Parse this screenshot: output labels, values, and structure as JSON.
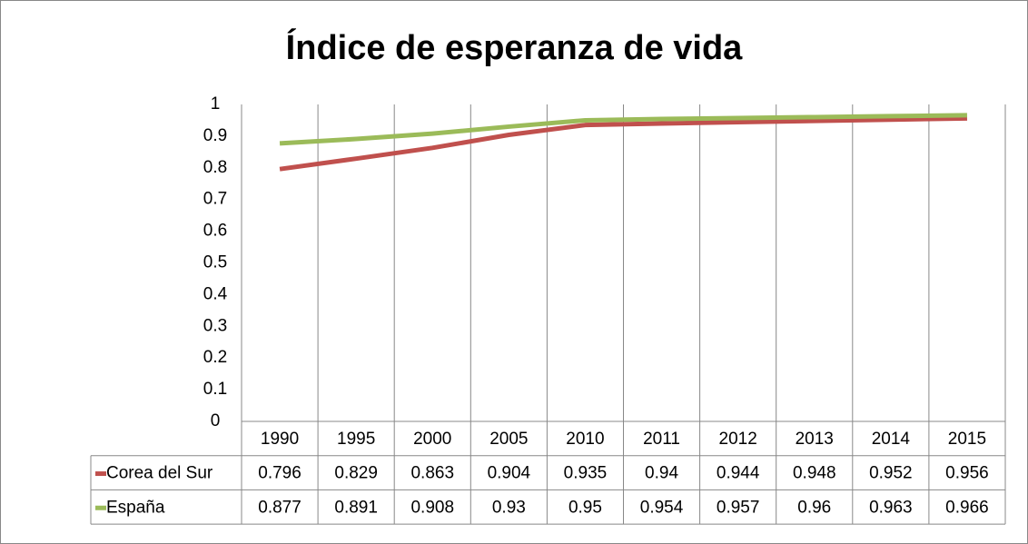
{
  "chart_data": {
    "type": "line",
    "title": "Índice de esperanza de vida",
    "categories": [
      "1990",
      "1995",
      "2000",
      "2005",
      "2010",
      "2011",
      "2012",
      "2013",
      "2014",
      "2015"
    ],
    "series": [
      {
        "name": "Corea del Sur",
        "color": "#c0504d",
        "values": [
          0.796,
          0.829,
          0.863,
          0.904,
          0.935,
          0.94,
          0.944,
          0.948,
          0.952,
          0.956
        ]
      },
      {
        "name": "España",
        "color": "#9bbb59",
        "values": [
          0.877,
          0.891,
          0.908,
          0.93,
          0.95,
          0.954,
          0.957,
          0.96,
          0.963,
          0.966
        ]
      }
    ],
    "ylim": [
      0,
      1
    ],
    "yticks": [
      0,
      0.1,
      0.2,
      0.3,
      0.4,
      0.5,
      0.6,
      0.7,
      0.8,
      0.9,
      1
    ],
    "data_table": true
  }
}
